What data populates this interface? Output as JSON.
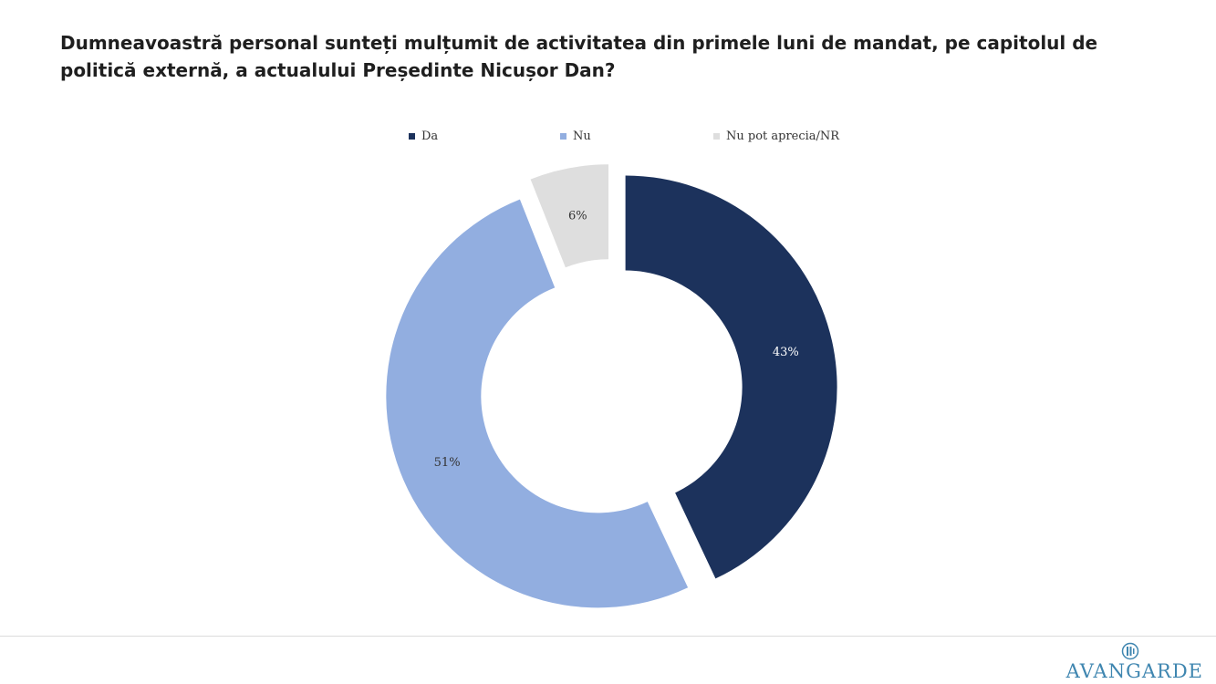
{
  "title": "Dumneavoastră personal sunteți mulțumit de activitatea din primele luni de mandat, pe capitolul de politică externă, a actualului Președinte Nicușor Dan?",
  "chart_data": {
    "type": "pie",
    "variant": "donut",
    "exploded": true,
    "categories": [
      "Da",
      "Nu",
      "Nu pot aprecia/NR"
    ],
    "values": [
      43,
      51,
      6
    ],
    "labels": [
      "43%",
      "51%",
      "6%"
    ],
    "colors": [
      "#1c325c",
      "#92aee0",
      "#dedede"
    ],
    "label_colors": [
      "#ffffff",
      "#333333",
      "#333333"
    ],
    "legend_position": "top"
  },
  "logo": {
    "text": "AVANGARDE",
    "color": "#3f86b0"
  }
}
